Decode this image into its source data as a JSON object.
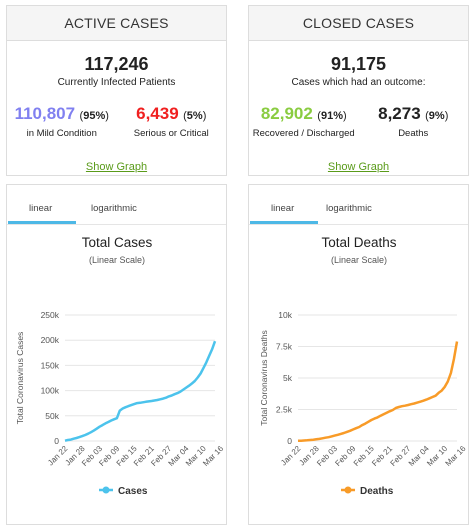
{
  "active": {
    "header": "ACTIVE CASES",
    "total": "117,246",
    "total_label": "Currently Infected Patients",
    "mild_value": "110,807",
    "mild_pct": "95%",
    "mild_label": "in Mild Condition",
    "serious_value": "6,439",
    "serious_pct": "5%",
    "serious_label": "Serious or Critical",
    "show_graph": "Show Graph",
    "colors": {
      "mild": "#8080f0",
      "serious": "#f02020"
    }
  },
  "closed": {
    "header": "CLOSED CASES",
    "total": "91,175",
    "total_label": "Cases which had an outcome:",
    "recovered_value": "82,902",
    "recovered_pct": "91%",
    "recovered_label": "Recovered / Discharged",
    "deaths_value": "8,273",
    "deaths_pct": "9%",
    "deaths_label": "Deaths",
    "show_graph": "Show Graph",
    "colors": {
      "recovered": "#8acc41",
      "deaths": "#222222"
    }
  },
  "tabs": {
    "linear": "linear",
    "log": "logarithmic"
  },
  "chart_data": [
    {
      "type": "line",
      "title": "Total Cases",
      "subtitle": "(Linear Scale)",
      "ylabel": "Total Coronavirus Cases",
      "xlabel": "",
      "ylim": [
        0,
        250000
      ],
      "yticks": [
        "0",
        "50k",
        "100k",
        "150k",
        "200k",
        "250k"
      ],
      "ytick_values": [
        0,
        50000,
        100000,
        150000,
        200000,
        250000
      ],
      "xticks": [
        "Jan 22",
        "Jan 28",
        "Feb 03",
        "Feb 09",
        "Feb 15",
        "Feb 21",
        "Feb 27",
        "Mar 04",
        "Mar 10",
        "Mar 16"
      ],
      "legend": "bottom",
      "color": "#4cc3ec",
      "series": [
        {
          "name": "Cases",
          "values": [
            555,
            2000,
            2800,
            4500,
            6000,
            7800,
            9800,
            11900,
            14500,
            17400,
            20600,
            24500,
            28300,
            31500,
            34900,
            37600,
            40600,
            43100,
            45200,
            60300,
            64400,
            67100,
            69200,
            71200,
            73300,
            75200,
            75700,
            76700,
            77700,
            78600,
            79400,
            80400,
            81400,
            82700,
            84100,
            86000,
            88400,
            90300,
            92800,
            95100,
            98000,
            102000,
            106000,
            109800,
            114000,
            119000,
            126000,
            134000,
            145000,
            156000,
            169000,
            182000,
            198000
          ]
        }
      ]
    },
    {
      "type": "line",
      "title": "Total Deaths",
      "subtitle": "(Linear Scale)",
      "ylabel": "Total Coronavirus Deaths",
      "xlabel": "",
      "ylim": [
        0,
        10000
      ],
      "yticks": [
        "0",
        "2.5k",
        "5k",
        "7.5k",
        "10k"
      ],
      "ytick_values": [
        0,
        2500,
        5000,
        7500,
        10000
      ],
      "xticks": [
        "Jan 22",
        "Jan 28",
        "Feb 03",
        "Feb 09",
        "Feb 15",
        "Feb 21",
        "Feb 27",
        "Mar 04",
        "Mar 10",
        "Mar 16"
      ],
      "legend": "bottom",
      "color": "#f89b28",
      "series": [
        {
          "name": "Deaths",
          "values": [
            17,
            25,
            41,
            56,
            80,
            106,
            132,
            170,
            213,
            259,
            304,
            362,
            426,
            492,
            565,
            638,
            724,
            813,
            910,
            1018,
            1115,
            1261,
            1383,
            1526,
            1669,
            1775,
            1873,
            2009,
            2126,
            2247,
            2360,
            2460,
            2618,
            2699,
            2763,
            2800,
            2858,
            2923,
            2977,
            3050,
            3117,
            3202,
            3285,
            3387,
            3494,
            3599,
            3827,
            4000,
            4300,
            4720,
            5400,
            6500,
            7900
          ]
        }
      ]
    }
  ]
}
